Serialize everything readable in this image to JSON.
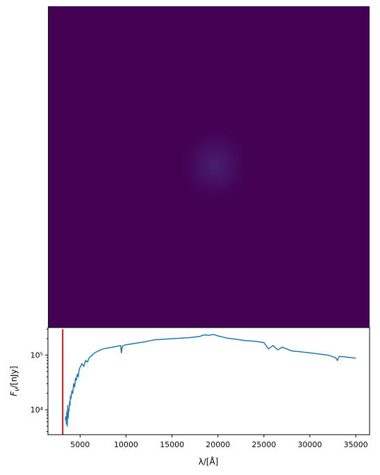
{
  "image_panel": {
    "colormap": "viridis",
    "background_color": "#440154",
    "source_color": "#482173"
  },
  "chart_data": {
    "type": "line",
    "xlabel": "λ/[Å]",
    "ylabel": "F_ν/[nJy]",
    "xlim": [
      1500,
      36500
    ],
    "ylim": [
      3500,
      320000
    ],
    "yscale": "log",
    "x_ticks": [
      5000,
      10000,
      15000,
      20000,
      25000,
      30000,
      35000
    ],
    "x_tick_labels": [
      "5000",
      "10000",
      "15000",
      "20000",
      "25000",
      "30000",
      "35000"
    ],
    "y_ticks": [
      10000,
      100000
    ],
    "y_tick_labels": [
      "10⁴",
      "10⁵"
    ],
    "grid": false,
    "series": [
      {
        "color": "#1f77b4",
        "x": [
          3400,
          3450,
          3500,
          3550,
          3600,
          3650,
          3700,
          3750,
          3800,
          3850,
          3900,
          3950,
          4000,
          4100,
          4200,
          4300,
          4400,
          4500,
          4600,
          4700,
          4800,
          4900,
          5000,
          5200,
          5400,
          5600,
          5800,
          6000,
          6300,
          6600,
          7000,
          7500,
          8000,
          8500,
          9000,
          9400,
          9500,
          9600,
          10000,
          11000,
          12000,
          13000,
          14000,
          15000,
          16000,
          17000,
          18000,
          18500,
          19000,
          19500,
          20000,
          21000,
          22000,
          23000,
          24000,
          25000,
          25500,
          26000,
          26500,
          27000,
          28000,
          29000,
          30000,
          31000,
          32000,
          32800,
          33000,
          33200,
          34000,
          35000
        ],
        "y": [
          6500,
          7500,
          5500,
          9000,
          5000,
          12000,
          7000,
          10000,
          9500,
          14000,
          12000,
          18000,
          16000,
          22000,
          20000,
          30000,
          26000,
          38000,
          35000,
          45000,
          40000,
          55000,
          60000,
          70000,
          62000,
          80000,
          75000,
          90000,
          100000,
          110000,
          120000,
          130000,
          135000,
          140000,
          145000,
          150000,
          110000,
          148000,
          155000,
          165000,
          175000,
          190000,
          195000,
          200000,
          205000,
          210000,
          220000,
          235000,
          230000,
          240000,
          225000,
          205000,
          195000,
          185000,
          180000,
          170000,
          130000,
          150000,
          125000,
          140000,
          120000,
          115000,
          110000,
          105000,
          100000,
          90000,
          80000,
          95000,
          92000,
          88000
        ]
      },
      {
        "color": "#e00000",
        "x": [
          3100,
          3100
        ],
        "y": [
          3500,
          300000
        ]
      }
    ]
  }
}
